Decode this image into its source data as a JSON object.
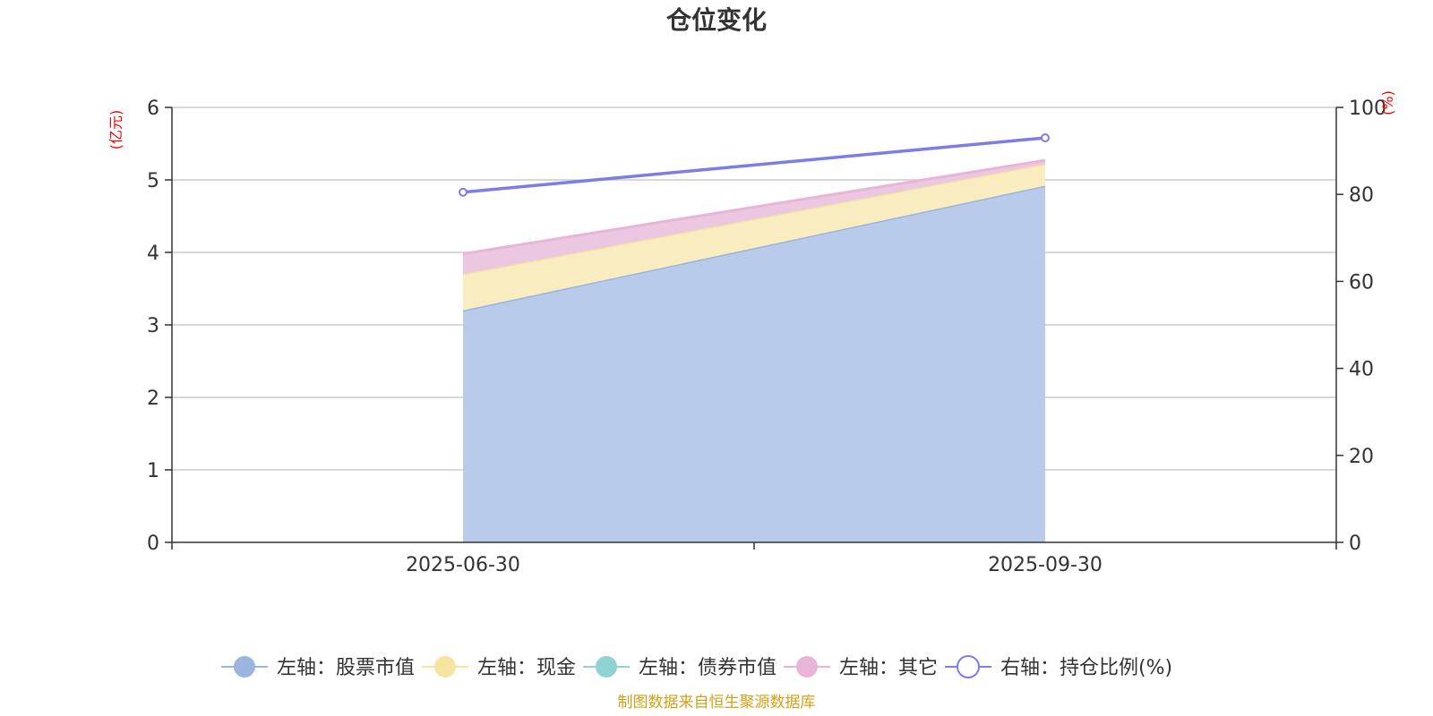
{
  "chart_data": {
    "type": "area",
    "title": "仓位变化",
    "categories": [
      "2025-06-30",
      "2025-09-30"
    ],
    "left_axis": {
      "unit": "(亿元)",
      "ylim": [
        0,
        6
      ],
      "ticks": [
        "0",
        "1",
        "2",
        "3",
        "4",
        "5",
        "6"
      ]
    },
    "right_axis": {
      "unit": "(%)",
      "ylim": [
        0,
        100
      ],
      "ticks": [
        "0",
        "20",
        "40",
        "60",
        "80",
        "100"
      ]
    },
    "series": [
      {
        "name": "左轴：股票市值",
        "axis": "left",
        "kind": "stacked-area",
        "values": [
          3.2,
          4.92
        ],
        "color": "#9bb5e0",
        "fill": "#b8cbea"
      },
      {
        "name": "左轴：现金",
        "axis": "left",
        "kind": "stacked-area",
        "values": [
          0.5,
          0.3
        ],
        "color": "#f5e4a0",
        "fill": "#f8ecc0"
      },
      {
        "name": "左轴：债券市值",
        "axis": "left",
        "kind": "stacked-area",
        "values": [
          0,
          0
        ],
        "color": "#8fd3d4",
        "fill": "#b5e2e3"
      },
      {
        "name": "左轴：其它",
        "axis": "left",
        "kind": "stacked-area",
        "values": [
          0.28,
          0.05
        ],
        "color": "#e8b4d8",
        "fill": "#ebc7e1"
      },
      {
        "name": "右轴：持仓比例(%)",
        "axis": "right",
        "kind": "line",
        "values": [
          80.5,
          93
        ],
        "color": "#7b7de8"
      }
    ],
    "grid": true,
    "legend_position": "bottom"
  },
  "footer": {
    "source": "制图数据来自恒生聚源数据库"
  }
}
